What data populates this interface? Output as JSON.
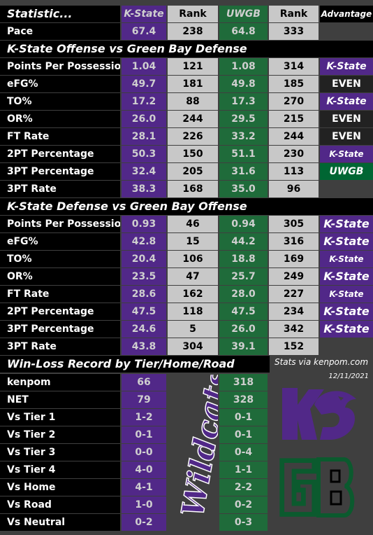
{
  "header": {
    "statistic": "Statistic...",
    "kstate": "K-State",
    "rank1": "Rank",
    "uwgb": "UWGB",
    "rank2": "Rank",
    "advantage": "Advantage"
  },
  "pace": {
    "label": "Pace",
    "ks": "67.4",
    "ks_rank": "238",
    "gb": "64.8",
    "gb_rank": "333"
  },
  "sections": {
    "offense": "K-State Offense vs Green Bay Defense",
    "defense": "K-State Defense vs Green Bay Offense",
    "wl": "Win-Loss Record by Tier/Home/Road"
  },
  "offense_rows": [
    {
      "label": "Points Per Possession",
      "ks": "1.04",
      "ks_rank": "121",
      "gb": "1.08",
      "gb_rank": "314",
      "adv": "K-State"
    },
    {
      "label": "eFG%",
      "ks": "49.7",
      "ks_rank": "181",
      "gb": "49.8",
      "gb_rank": "185",
      "adv": "EVEN"
    },
    {
      "label": "TO%",
      "ks": "17.2",
      "ks_rank": "88",
      "gb": "17.3",
      "gb_rank": "270",
      "adv": "K-State"
    },
    {
      "label": "OR%",
      "ks": "26.0",
      "ks_rank": "244",
      "gb": "29.5",
      "gb_rank": "215",
      "adv": "EVEN"
    },
    {
      "label": "FT Rate",
      "ks": "28.1",
      "ks_rank": "226",
      "gb": "33.2",
      "gb_rank": "244",
      "adv": "EVEN"
    },
    {
      "label": "2PT Percentage",
      "ks": "50.3",
      "ks_rank": "150",
      "gb": "51.1",
      "gb_rank": "230",
      "adv": "K-State"
    },
    {
      "label": "3PT Percentage",
      "ks": "32.4",
      "ks_rank": "205",
      "gb": "31.6",
      "gb_rank": "113",
      "adv": "UWGB"
    },
    {
      "label": "3PT Rate",
      "ks": "38.3",
      "ks_rank": "168",
      "gb": "35.0",
      "gb_rank": "96",
      "adv": ""
    }
  ],
  "defense_rows": [
    {
      "label": "Points Per Possession",
      "ks": "0.93",
      "ks_rank": "46",
      "gb": "0.94",
      "gb_rank": "305",
      "adv": "K-State"
    },
    {
      "label": "eFG%",
      "ks": "42.8",
      "ks_rank": "15",
      "gb": "44.2",
      "gb_rank": "316",
      "adv": "K-State"
    },
    {
      "label": "TO%",
      "ks": "20.4",
      "ks_rank": "106",
      "gb": "18.8",
      "gb_rank": "169",
      "adv": "K-State"
    },
    {
      "label": "OR%",
      "ks": "23.5",
      "ks_rank": "47",
      "gb": "25.7",
      "gb_rank": "249",
      "adv": "K-State"
    },
    {
      "label": "FT Rate",
      "ks": "28.6",
      "ks_rank": "162",
      "gb": "28.0",
      "gb_rank": "227",
      "adv": "K-State"
    },
    {
      "label": "2PT Percentage",
      "ks": "47.5",
      "ks_rank": "118",
      "gb": "47.5",
      "gb_rank": "234",
      "adv": "K-State"
    },
    {
      "label": "3PT Percentage",
      "ks": "24.6",
      "ks_rank": "5",
      "gb": "26.0",
      "gb_rank": "342",
      "adv": "K-State"
    },
    {
      "label": "3PT Rate",
      "ks": "43.8",
      "ks_rank": "304",
      "gb": "39.1",
      "gb_rank": "152",
      "adv": ""
    }
  ],
  "wl_rows": [
    {
      "label": "kenpom",
      "ks": "66",
      "gb": "318"
    },
    {
      "label": "NET",
      "ks": "79",
      "gb": "328"
    },
    {
      "label": "Vs Tier 1",
      "ks": "1-2",
      "gb": "0-1"
    },
    {
      "label": "Vs Tier 2",
      "ks": "0-1",
      "gb": "0-1"
    },
    {
      "label": "Vs Tier 3",
      "ks": "0-0",
      "gb": "0-4"
    },
    {
      "label": "Vs Tier 4",
      "ks": "4-0",
      "gb": "1-1"
    },
    {
      "label": "Vs Home",
      "ks": "4-1",
      "gb": "2-2"
    },
    {
      "label": "Vs Road",
      "ks": "1-0",
      "gb": "0-2"
    },
    {
      "label": "Vs Neutral",
      "ks": "0-2",
      "gb": "0-3"
    }
  ],
  "source": "Stats via kenpom.com",
  "date": "12/11/2021",
  "wildcats_text": "Wildcats",
  "colors": {
    "kstate": "#512888",
    "uwgb": "#1f6b3a",
    "rank": "#c8c8c8",
    "label_bg": "#000000",
    "page_bg": "#3f3f3f"
  }
}
